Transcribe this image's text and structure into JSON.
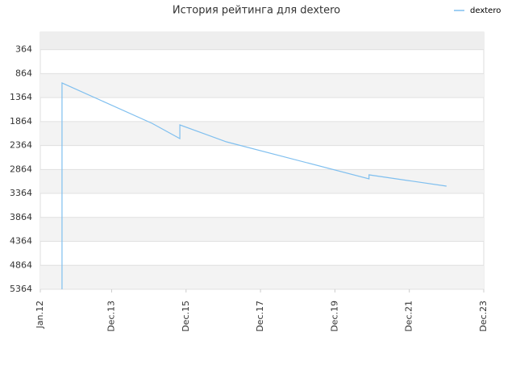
{
  "chart_data": {
    "type": "line",
    "title": "История рейтинга для dextero",
    "x": [
      "2012-08",
      "2012-08",
      "2015-01",
      "2015-10",
      "2015-10",
      "2017-01",
      "2020-11",
      "2020-11",
      "2022-12"
    ],
    "series": [
      {
        "name": "dextero",
        "color": "#7fbfef",
        "values": [
          5364,
          1059,
          1900,
          2220,
          1934,
          2287,
          3060,
          2976,
          3212
        ]
      }
    ],
    "ylim": [
      5364,
      0
    ],
    "yticks": [
      364,
      864,
      1364,
      1864,
      2364,
      2864,
      3364,
      3864,
      4364,
      4864,
      5364
    ],
    "xlim": [
      "2012-01",
      "2023-12"
    ],
    "xticks": [
      {
        "value": "2012-01",
        "label": "Jan.12"
      },
      {
        "value": "2013-12",
        "label": "Dec.13"
      },
      {
        "value": "2015-12",
        "label": "Dec.15"
      },
      {
        "value": "2017-12",
        "label": "Dec.17"
      },
      {
        "value": "2019-12",
        "label": "Dec.19"
      },
      {
        "value": "2021-12",
        "label": "Dec.21"
      },
      {
        "value": "2023-12",
        "label": "Dec.23"
      }
    ],
    "grid": true,
    "legend": "top-right"
  }
}
